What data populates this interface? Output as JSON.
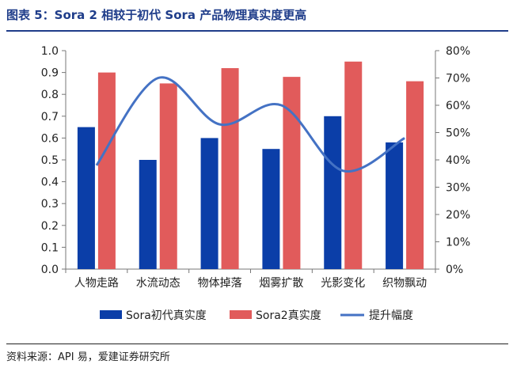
{
  "figure": {
    "title": "图表 5：Sora 2 相较于初代 Sora 产品物理真实度更高",
    "source": "资料来源：API 易，爱建证券研究所"
  },
  "colors": {
    "series1": "#0b3ea8",
    "series2": "#e15b5b",
    "line": "#4472c4",
    "title": "#1f3d8a"
  },
  "chart_data": {
    "type": "bar",
    "title": "Sora 2 相较于初代 Sora 产品物理真实度更高",
    "categories": [
      "人物走路",
      "水流动态",
      "物体掉落",
      "烟雾扩散",
      "光影变化",
      "织物飘动"
    ],
    "series": [
      {
        "name": "Sora初代真实度",
        "type": "bar",
        "axis": "left",
        "values": [
          0.65,
          0.5,
          0.6,
          0.55,
          0.7,
          0.58
        ]
      },
      {
        "name": "Sora2真实度",
        "type": "bar",
        "axis": "left",
        "values": [
          0.9,
          0.85,
          0.92,
          0.88,
          0.95,
          0.86
        ]
      },
      {
        "name": "提升幅度",
        "type": "line",
        "axis": "right",
        "values": [
          0.38,
          0.7,
          0.53,
          0.6,
          0.36,
          0.48
        ]
      }
    ],
    "ylim": [
      0,
      1.0
    ],
    "yticks": [
      "1.0",
      "0.9",
      "0.8",
      "0.7",
      "0.6",
      "0.5",
      "0.4",
      "0.3",
      "0.2",
      "0.1",
      "0.0"
    ],
    "y2lim": [
      0,
      0.8
    ],
    "y2ticks": [
      "80%",
      "70%",
      "60%",
      "50%",
      "40%",
      "30%",
      "20%",
      "10%",
      "0%"
    ],
    "legend_position": "bottom"
  }
}
